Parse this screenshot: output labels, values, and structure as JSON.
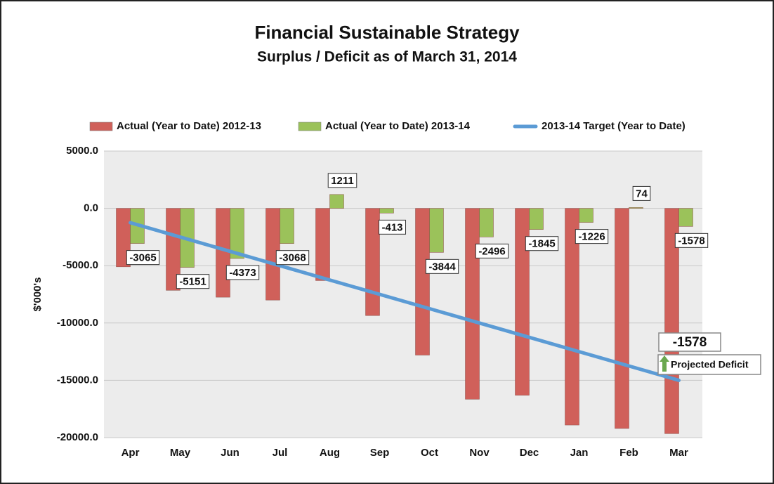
{
  "chart_data": {
    "type": "bar",
    "title": "Financial Sustainable Strategy",
    "subtitle": "Surplus / Deficit as of March 31, 2014",
    "y_label": "$'000's",
    "categories": [
      "Apr",
      "May",
      "Jun",
      "Jul",
      "Aug",
      "Sep",
      "Oct",
      "Nov",
      "Dec",
      "Jan",
      "Feb",
      "Mar"
    ],
    "series": [
      {
        "name": "Actual (Year to Date) 2012-13",
        "type": "bar",
        "color": "#d0605a",
        "values": [
          -5100,
          -7150,
          -7750,
          -8000,
          -6300,
          -9350,
          -12800,
          -16650,
          -16300,
          -18900,
          -19200,
          -19650
        ]
      },
      {
        "name": "Actual (Year to Date) 2013-14",
        "type": "bar",
        "color": "#9bc25a",
        "show_labels": true,
        "values": [
          -3065,
          -5151,
          -4373,
          -3068,
          1211,
          -413,
          -3844,
          -2496,
          -1845,
          -1226,
          74,
          -1578
        ]
      },
      {
        "name": "2013-14 Target (Year to Date)",
        "type": "line",
        "color": "#5b9bd5",
        "values": [
          -1250,
          -2500,
          -3750,
          -5000,
          -6250,
          -7500,
          -8750,
          -10000,
          -11250,
          -12500,
          -13750,
          -15000
        ]
      }
    ],
    "ylim": [
      -20000,
      5000
    ],
    "yticks": [
      {
        "value": -20000,
        "label": "-20000.0"
      },
      {
        "value": -15000,
        "label": "-15000.0"
      },
      {
        "value": -10000,
        "label": "-10000.0"
      },
      {
        "value": -5000,
        "label": "-5000.0"
      },
      {
        "value": 0,
        "label": "0.0"
      },
      {
        "value": 5000,
        "label": "5000.0"
      }
    ],
    "grid": true,
    "legend": "top",
    "projection": {
      "value": -1578,
      "label": "Projected Deficit"
    }
  }
}
